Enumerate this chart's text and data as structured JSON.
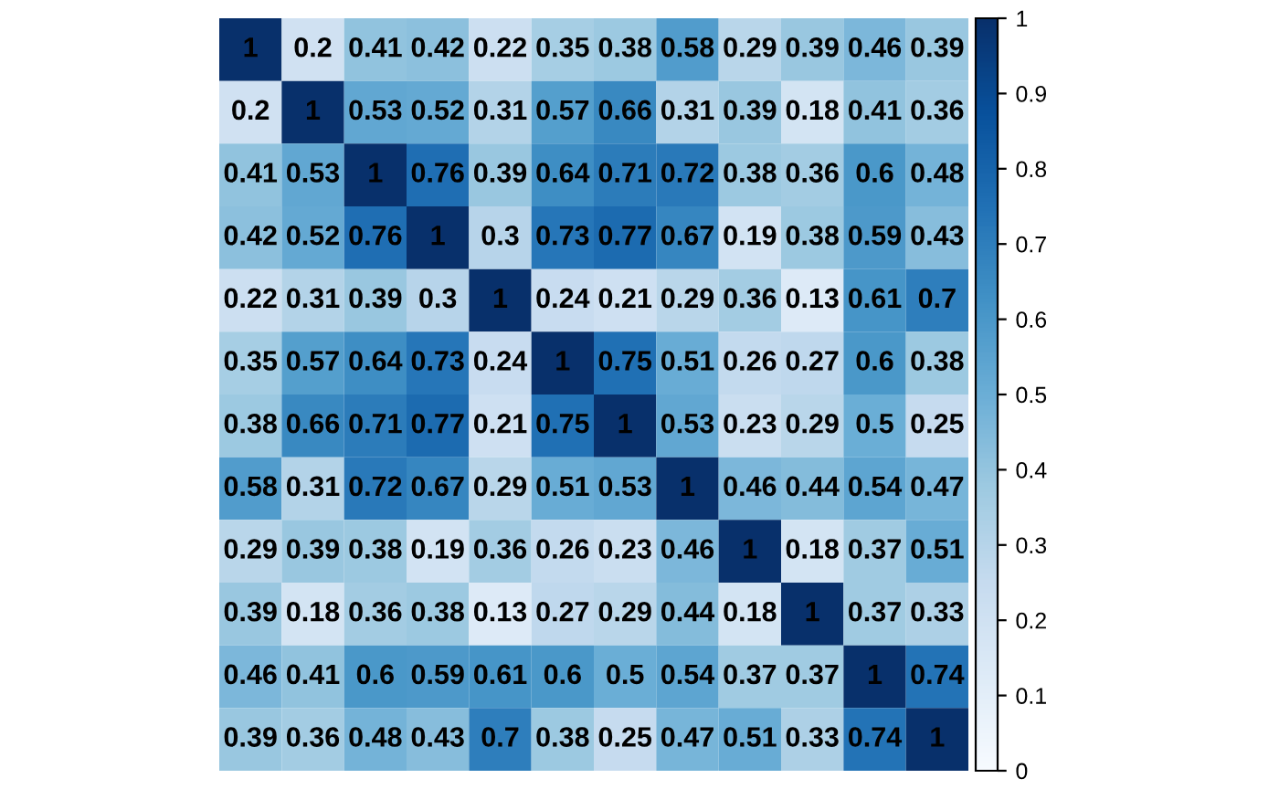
{
  "chart_data": {
    "type": "heatmap",
    "categories": [
      null,
      null,
      null,
      null,
      null,
      null,
      null,
      null,
      null,
      null,
      null,
      null
    ],
    "y_categories": [
      null,
      null,
      null,
      null,
      null,
      null,
      null,
      null,
      null,
      null,
      null,
      null
    ],
    "cells": [
      [
        1,
        0.2,
        0.41,
        0.42,
        0.22,
        0.35,
        0.38,
        0.58,
        0.29,
        0.39,
        0.46,
        0.39
      ],
      [
        0.2,
        1,
        0.53,
        0.52,
        0.31,
        0.57,
        0.66,
        0.31,
        0.39,
        0.18,
        0.41,
        0.36
      ],
      [
        0.41,
        0.53,
        1,
        0.76,
        0.39,
        0.64,
        0.71,
        0.72,
        0.38,
        0.36,
        0.6,
        0.48
      ],
      [
        0.42,
        0.52,
        0.76,
        1,
        0.3,
        0.73,
        0.77,
        0.67,
        0.19,
        0.38,
        0.59,
        0.43
      ],
      [
        0.22,
        0.31,
        0.39,
        0.3,
        1,
        0.24,
        0.21,
        0.29,
        0.36,
        0.13,
        0.61,
        0.7
      ],
      [
        0.35,
        0.57,
        0.64,
        0.73,
        0.24,
        1,
        0.75,
        0.51,
        0.26,
        0.27,
        0.6,
        0.38
      ],
      [
        0.38,
        0.66,
        0.71,
        0.77,
        0.21,
        0.75,
        1,
        0.53,
        0.23,
        0.29,
        0.5,
        0.25
      ],
      [
        0.58,
        0.31,
        0.72,
        0.67,
        0.29,
        0.51,
        0.53,
        1,
        0.46,
        0.44,
        0.54,
        0.47
      ],
      [
        0.29,
        0.39,
        0.38,
        0.19,
        0.36,
        0.26,
        0.23,
        0.46,
        1,
        0.18,
        0.37,
        0.51
      ],
      [
        0.39,
        0.18,
        0.36,
        0.38,
        0.13,
        0.27,
        0.29,
        0.44,
        0.18,
        1,
        0.37,
        0.33
      ],
      [
        0.46,
        0.41,
        0.6,
        0.59,
        0.61,
        0.6,
        0.5,
        0.54,
        0.37,
        0.37,
        1,
        0.74
      ],
      [
        0.39,
        0.36,
        0.48,
        0.43,
        0.7,
        0.38,
        0.25,
        0.47,
        0.51,
        0.33,
        0.74,
        1
      ]
    ],
    "data_labels": true,
    "clim": [
      0,
      1
    ],
    "cticks": [
      0,
      0.1,
      0.2,
      0.3,
      0.4,
      0.5,
      0.6,
      0.7,
      0.8,
      0.9,
      1
    ],
    "grid": false
  }
}
